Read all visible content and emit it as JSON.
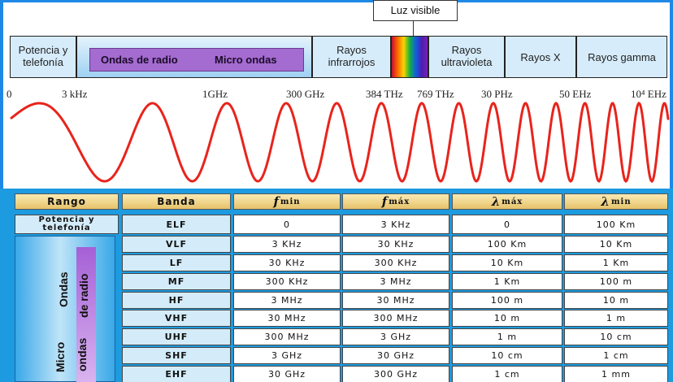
{
  "diagram": {
    "callout": "Luz visible",
    "bands": [
      {
        "label1": "Potencia y",
        "label2": "telefonía"
      },
      {
        "label1": "Rayos",
        "label2": "infrarrojos"
      },
      {
        "label1": "Rayos",
        "label2": "ultravioleta"
      },
      {
        "label1": "Rayos X",
        "label2": ""
      },
      {
        "label1": "Rayos gamma",
        "label2": ""
      }
    ],
    "radio_left": "Ondas de radio",
    "radio_right": "Micro ondas",
    "frequencies": [
      "0",
      "3 kHz",
      "1GHz",
      "300 GHz",
      "384 THz",
      "769 THz",
      "30 PHz",
      "50 EHz",
      "10⁴ EHz"
    ],
    "wave_color": "#e8241c"
  },
  "table": {
    "headers": {
      "range": "Rango",
      "band": "Banda",
      "fmin": "f",
      "fmin_sub": "min",
      "fmax": "f",
      "fmax_sub": "máx",
      "lmax": "λ",
      "lmax_sub": "máx",
      "lmin": "λ",
      "lmin_sub": "min"
    },
    "first_range_1": "Potencia y",
    "first_range_2": "telefonía",
    "group_labels": {
      "ondas": "Ondas",
      "de_radio": "de radio",
      "micro": "Micro",
      "ondas2": "ondas"
    },
    "rows": [
      {
        "band": "ELF",
        "fmin": "0",
        "fmax": "3 KHz",
        "lmax": "0",
        "lmin": "100 Km"
      },
      {
        "band": "VLF",
        "fmin": "3 KHz",
        "fmax": "30 KHz",
        "lmax": "100 Km",
        "lmin": "10 Km"
      },
      {
        "band": "LF",
        "fmin": "30 KHz",
        "fmax": "300 KHz",
        "lmax": "10 Km",
        "lmin": "1 Km"
      },
      {
        "band": "MF",
        "fmin": "300 KHz",
        "fmax": "3 MHz",
        "lmax": "1 Km",
        "lmin": "100 m"
      },
      {
        "band": "HF",
        "fmin": "3 MHz",
        "fmax": "30 MHz",
        "lmax": "100 m",
        "lmin": "10 m"
      },
      {
        "band": "VHF",
        "fmin": "30 MHz",
        "fmax": "300 MHz",
        "lmax": "10 m",
        "lmin": "1 m"
      },
      {
        "band": "UHF",
        "fmin": "300 MHz",
        "fmax": "3 GHz",
        "lmax": "1 m",
        "lmin": "10 cm"
      },
      {
        "band": "SHF",
        "fmin": "3 GHz",
        "fmax": "30 GHz",
        "lmax": "10 cm",
        "lmin": "1 cm"
      },
      {
        "band": "EHF",
        "fmin": "30 GHz",
        "fmax": "300 GHz",
        "lmax": "1 cm",
        "lmin": "1 mm"
      }
    ]
  },
  "colors": {
    "accent_blue": "#1d9be0",
    "radio_purple": "#a46bd0",
    "header_gold": "#e6c36a"
  }
}
